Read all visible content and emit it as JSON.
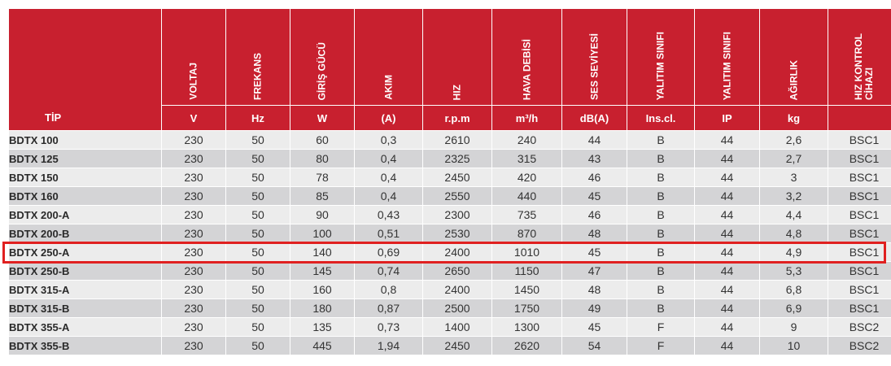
{
  "header": {
    "tip": "TİP",
    "columns": [
      {
        "label": "VOLTAJ",
        "unit": "V"
      },
      {
        "label": "FREKANS",
        "unit": "Hz"
      },
      {
        "label": "GİRİŞ GÜCÜ",
        "unit": "W"
      },
      {
        "label": "AKIM",
        "unit": "(A)"
      },
      {
        "label": "HIZ",
        "unit": "r.p.m"
      },
      {
        "label": "HAVA DEBİSİ",
        "unit": "m³/h"
      },
      {
        "label": "SES SEVİYESİ",
        "unit": "dB(A)"
      },
      {
        "label": "YALITIM SINIFI",
        "unit": "Ins.cl."
      },
      {
        "label": "YALITIM SINIFI",
        "unit": "IP"
      },
      {
        "label": "AĞIRLIK",
        "unit": "kg"
      },
      {
        "label": "HIZ KONTROL\nCİHAZI",
        "unit": ""
      }
    ]
  },
  "rows": [
    {
      "tip": "BDTX 100",
      "values": [
        "230",
        "50",
        "60",
        "0,3",
        "2610",
        "240",
        "44",
        "B",
        "44",
        "2,6",
        "BSC1"
      ]
    },
    {
      "tip": "BDTX 125",
      "values": [
        "230",
        "50",
        "80",
        "0,4",
        "2325",
        "315",
        "43",
        "B",
        "44",
        "2,7",
        "BSC1"
      ]
    },
    {
      "tip": "BDTX 150",
      "values": [
        "230",
        "50",
        "78",
        "0,4",
        "2450",
        "420",
        "46",
        "B",
        "44",
        "3",
        "BSC1"
      ]
    },
    {
      "tip": "BDTX 160",
      "values": [
        "230",
        "50",
        "85",
        "0,4",
        "2550",
        "440",
        "45",
        "B",
        "44",
        "3,2",
        "BSC1"
      ]
    },
    {
      "tip": "BDTX 200-A",
      "values": [
        "230",
        "50",
        "90",
        "0,43",
        "2300",
        "735",
        "46",
        "B",
        "44",
        "4,4",
        "BSC1"
      ]
    },
    {
      "tip": "BDTX 200-B",
      "values": [
        "230",
        "50",
        "100",
        "0,51",
        "2530",
        "870",
        "48",
        "B",
        "44",
        "4,8",
        "BSC1"
      ]
    },
    {
      "tip": "BDTX 250-A",
      "values": [
        "230",
        "50",
        "140",
        "0,69",
        "2400",
        "1010",
        "45",
        "B",
        "44",
        "4,9",
        "BSC1"
      ]
    },
    {
      "tip": "BDTX 250-B",
      "values": [
        "230",
        "50",
        "145",
        "0,74",
        "2650",
        "1150",
        "47",
        "B",
        "44",
        "5,3",
        "BSC1"
      ]
    },
    {
      "tip": "BDTX 315-A",
      "values": [
        "230",
        "50",
        "160",
        "0,8",
        "2400",
        "1450",
        "48",
        "B",
        "44",
        "6,8",
        "BSC1"
      ]
    },
    {
      "tip": "BDTX 315-B",
      "values": [
        "230",
        "50",
        "180",
        "0,87",
        "2500",
        "1750",
        "49",
        "B",
        "44",
        "6,9",
        "BSC1"
      ]
    },
    {
      "tip": "BDTX 355-A",
      "values": [
        "230",
        "50",
        "135",
        "0,73",
        "1400",
        "1300",
        "45",
        "F",
        "44",
        "9",
        "BSC2"
      ]
    },
    {
      "tip": "BDTX 355-B",
      "values": [
        "230",
        "50",
        "445",
        "1,94",
        "2450",
        "2620",
        "54",
        "F",
        "44",
        "10",
        "BSC2"
      ]
    }
  ],
  "highlighted_row": "BDTX 250-A",
  "colors": {
    "header_bg": "#c8202f",
    "row_light": "#ececec",
    "row_dark": "#d4d4d6",
    "highlight_border": "#e02020"
  }
}
